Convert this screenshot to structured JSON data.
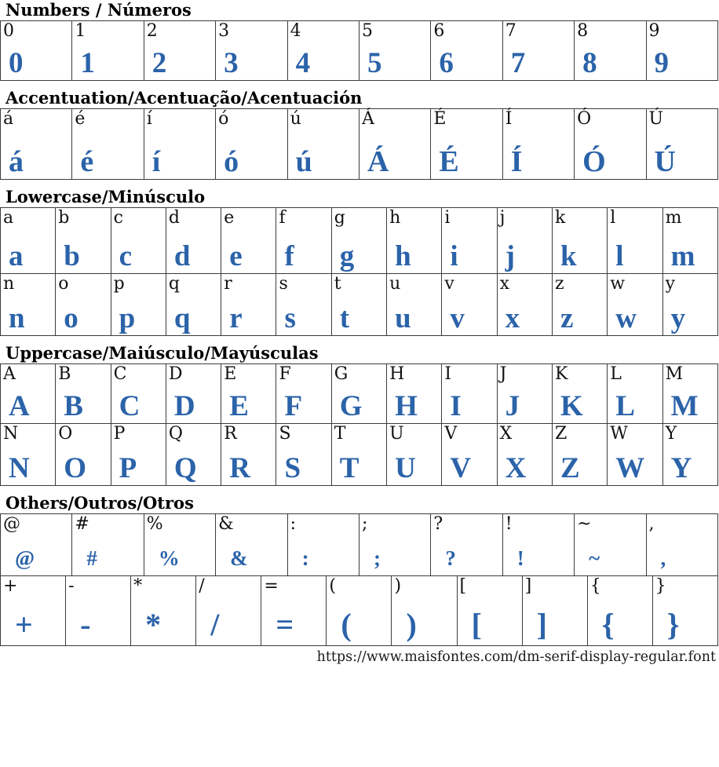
{
  "page": {
    "accent_color": "#2b63a9",
    "footer_url": "https://www.maisfontes.com/dm-serif-display-regular.font"
  },
  "sections": [
    {
      "id": "numbers",
      "title": "Numbers / Números",
      "rows": [
        [
          "0",
          "1",
          "2",
          "3",
          "4",
          "5",
          "6",
          "7",
          "8",
          "9"
        ]
      ]
    },
    {
      "id": "accentuation",
      "title": "Accentuation/Acentuação/Acentuación",
      "rows": [
        [
          "á",
          "é",
          "í",
          "ó",
          "ú",
          "Á",
          "É",
          "Í",
          "Ó",
          "Ú"
        ]
      ]
    },
    {
      "id": "lowercase",
      "title": "Lowercase/Minúsculo",
      "rows": [
        [
          "a",
          "b",
          "c",
          "d",
          "e",
          "f",
          "g",
          "h",
          "i",
          "j",
          "k",
          "l",
          "m"
        ],
        [
          "n",
          "o",
          "p",
          "q",
          "r",
          "s",
          "t",
          "u",
          "v",
          "x",
          "z",
          "w",
          "y"
        ]
      ]
    },
    {
      "id": "uppercase",
      "title": "Uppercase/Maiúsculo/Mayúsculas",
      "rows": [
        [
          "A",
          "B",
          "C",
          "D",
          "E",
          "F",
          "G",
          "H",
          "I",
          "J",
          "K",
          "L",
          "M"
        ],
        [
          "N",
          "O",
          "P",
          "Q",
          "R",
          "S",
          "T",
          "U",
          "V",
          "X",
          "Z",
          "W",
          "Y"
        ]
      ]
    },
    {
      "id": "others",
      "title": "Others/Outros/Otros",
      "rows": [
        [
          "@",
          "#",
          "%",
          "&",
          ":",
          ";",
          "?",
          "!",
          "~",
          ","
        ],
        [
          "+",
          "-",
          "*",
          "/",
          "=",
          "(",
          ")",
          "[",
          "]",
          "{",
          "}"
        ]
      ]
    }
  ]
}
